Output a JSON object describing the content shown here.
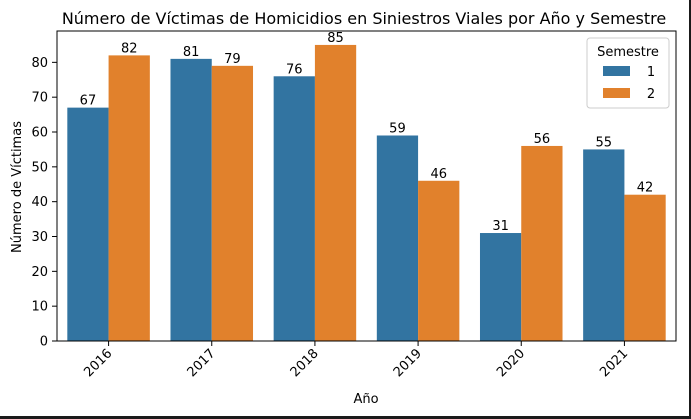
{
  "chart_data": {
    "type": "bar",
    "title": "Número de Víctimas de Homicidios en Siniestros Viales por Año y Semestre",
    "xlabel": "Año",
    "ylabel": "Número de Víctimas",
    "categories": [
      "2016",
      "2017",
      "2018",
      "2019",
      "2020",
      "2021"
    ],
    "series": [
      {
        "name": "1",
        "values": [
          67,
          81,
          76,
          59,
          31,
          55
        ],
        "color": "#3274a1"
      },
      {
        "name": "2",
        "values": [
          82,
          79,
          85,
          46,
          56,
          42
        ],
        "color": "#e1812c"
      }
    ],
    "ylim": [
      0,
      89
    ],
    "yticks": [
      0,
      10,
      20,
      30,
      40,
      50,
      60,
      70,
      80
    ],
    "grid": false,
    "legend": {
      "title": "Semestre",
      "placement": "top-right"
    },
    "x_tick_rotation_deg": 45,
    "data_labels": true
  }
}
